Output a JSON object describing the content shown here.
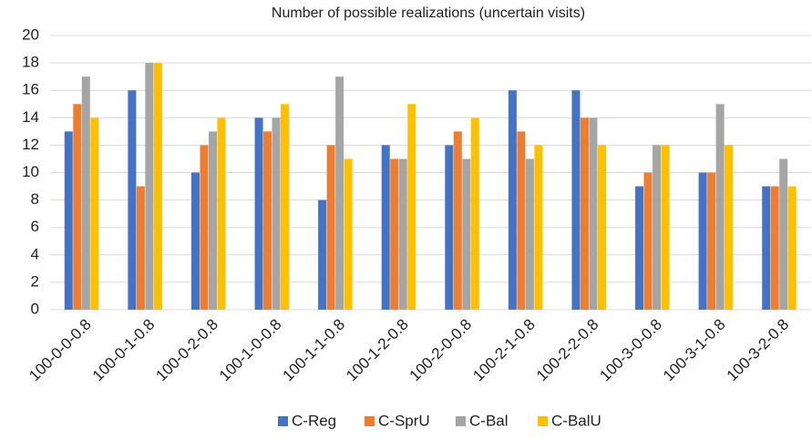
{
  "chart_data": {
    "type": "bar",
    "title": "Number of possible realizations (uncertain visits)",
    "categories": [
      "100-0-0-0.8",
      "100-0-1-0.8",
      "100-0-2-0.8",
      "100-1-0-0.8",
      "100-1-1-0.8",
      "100-1-2-0.8",
      "100-2-0-0.8",
      "100-2-1-0.8",
      "100-2-2-0.8",
      "100-3-0-0.8",
      "100-3-1-0.8",
      "100-3-2-0.8"
    ],
    "series": [
      {
        "name": "C-Reg",
        "color": "#4472c4",
        "values": [
          13,
          16,
          10,
          14,
          8,
          12,
          12,
          16,
          16,
          9,
          10,
          9
        ]
      },
      {
        "name": "C-SprU",
        "color": "#ed7d31",
        "values": [
          15,
          9,
          12,
          13,
          12,
          11,
          13,
          13,
          14,
          10,
          10,
          9
        ]
      },
      {
        "name": "C-Bal",
        "color": "#a5a5a5",
        "values": [
          17,
          18,
          13,
          14,
          17,
          11,
          11,
          11,
          14,
          12,
          15,
          11
        ]
      },
      {
        "name": "C-BalU",
        "color": "#ffc000",
        "values": [
          14,
          18,
          14,
          15,
          11,
          15,
          14,
          12,
          12,
          12,
          12,
          9
        ]
      }
    ],
    "ylim": [
      0,
      20
    ],
    "yticks": [
      0,
      2,
      4,
      6,
      8,
      10,
      12,
      14,
      16,
      18,
      20
    ],
    "grid": true,
    "legend": "bottom"
  }
}
